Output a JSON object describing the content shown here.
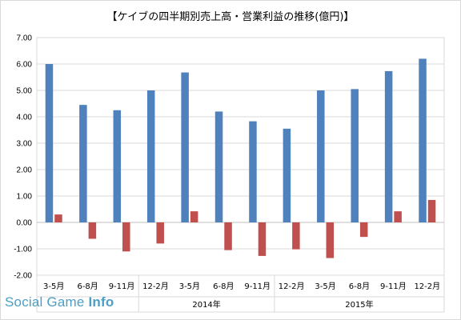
{
  "title": "【ケイブの四半期別売上高・営業利益の推移(億円)】",
  "watermark": {
    "part1": "Social Game ",
    "part2": "Info"
  },
  "colors": {
    "revenue": "#4f81bd",
    "profit": "#c0504d",
    "grid": "#d9d9d9"
  },
  "chart_data": {
    "type": "bar",
    "title": "【ケイブの四半期別売上高・営業利益の推移(億円)】",
    "categories": [
      "3-5月",
      "6-8月",
      "9-11月",
      "12-2月",
      "3-5月",
      "6-8月",
      "9-11月",
      "12-2月",
      "3-5月",
      "6-8月",
      "9-11月",
      "12-2月"
    ],
    "groups": [
      {
        "label": "",
        "span": 3
      },
      {
        "label": "2014年",
        "span": 4
      },
      {
        "label": "2015年",
        "span": 5
      }
    ],
    "series": [
      {
        "values": [
          6.0,
          4.45,
          4.25,
          5.0,
          5.68,
          4.2,
          3.83,
          3.55,
          5.0,
          5.05,
          5.73,
          6.2
        ]
      },
      {
        "values": [
          0.3,
          -0.62,
          -1.1,
          -0.8,
          0.42,
          -1.05,
          -1.27,
          -1.02,
          -1.35,
          -0.55,
          0.42,
          0.85
        ]
      }
    ],
    "ylim": [
      -2.0,
      7.0
    ],
    "yticks": [
      "7.00",
      "6.00",
      "5.00",
      "4.00",
      "3.00",
      "2.00",
      "1.00",
      "0.00",
      "-1.00",
      "-2.00"
    ],
    "grid": true,
    "xlabel": "",
    "ylabel": ""
  }
}
